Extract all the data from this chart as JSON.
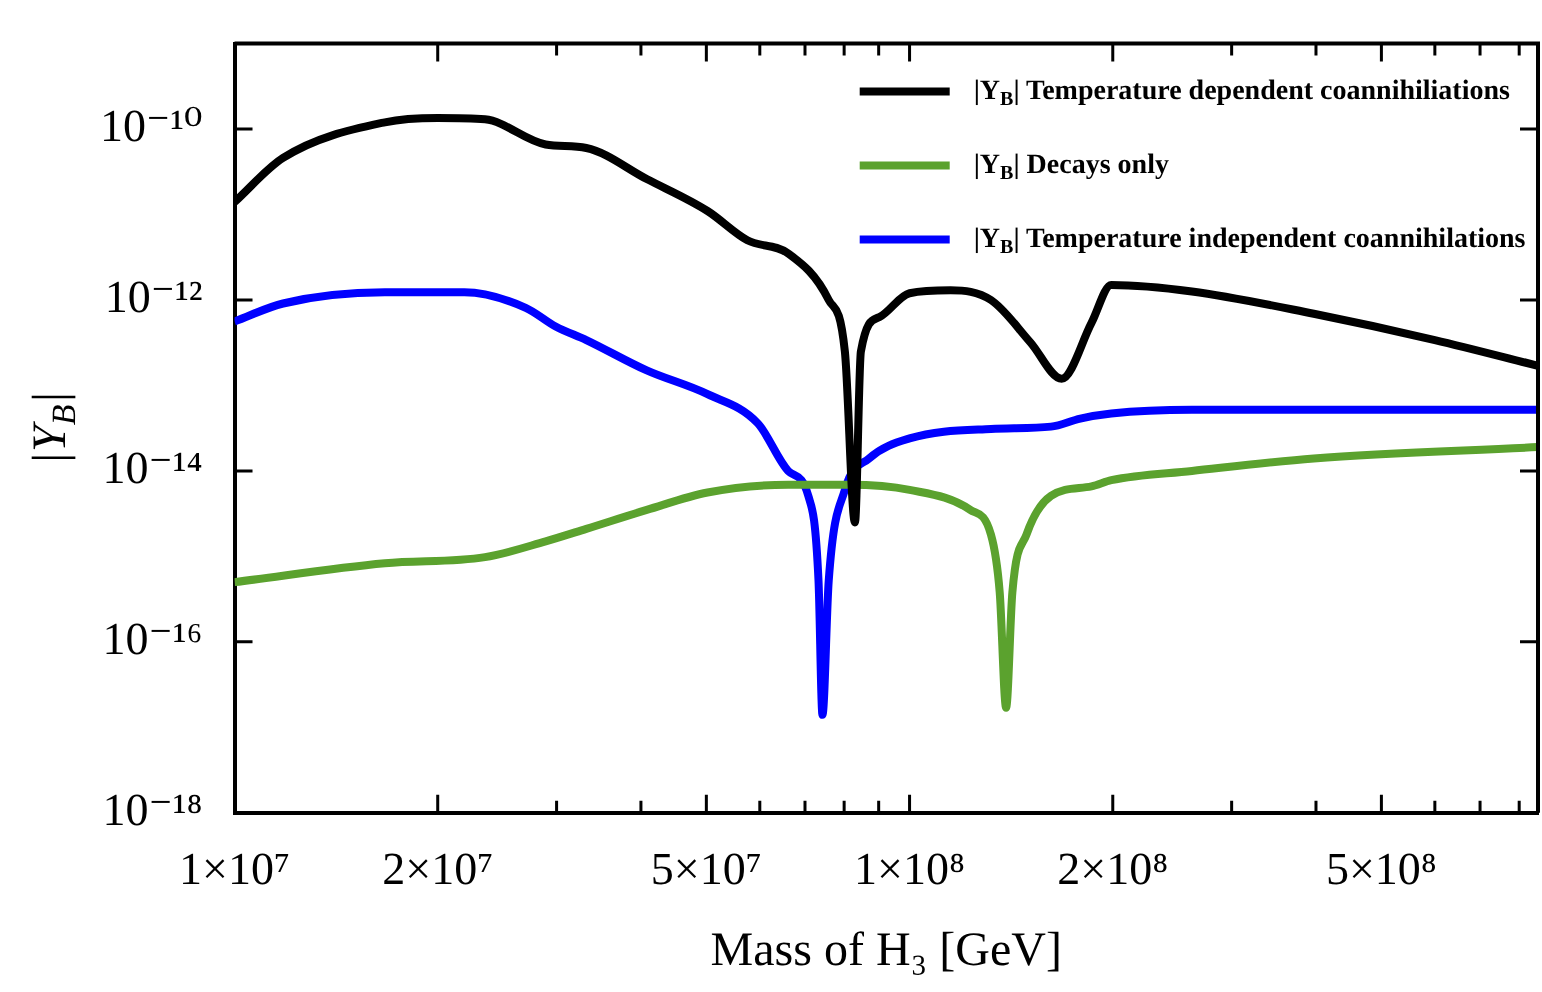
{
  "chart_data": {
    "type": "line",
    "xlabel": "Mass of H₃ [GeV]",
    "ylabel": "|Y$_{B}$|",
    "log": "xy",
    "legend": "top right",
    "marker": "none",
    "line_style": "solid",
    "xlim": [
      10000000.0,
      853000000.0
    ],
    "ylim": [
      1e-18,
      1e-09
    ],
    "xticks": [
      {
        "value": 10000000.0,
        "label": "1×10⁷"
      },
      {
        "value": 20000000.0,
        "label": "2×10⁷"
      },
      {
        "value": 30000000.0,
        "label": null
      },
      {
        "value": 40000000.0,
        "label": null
      },
      {
        "value": 50000000.0,
        "label": "5×10⁷"
      },
      {
        "value": 60000000.0,
        "label": null
      },
      {
        "value": 70000000.0,
        "label": null
      },
      {
        "value": 80000000.0,
        "label": null
      },
      {
        "value": 90000000.0,
        "label": null
      },
      {
        "value": 100000000.0,
        "label": "1×10⁸"
      },
      {
        "value": 200000000.0,
        "label": "2×10⁸"
      },
      {
        "value": 300000000.0,
        "label": null
      },
      {
        "value": 400000000.0,
        "label": null
      },
      {
        "value": 500000000.0,
        "label": "5×10⁸"
      },
      {
        "value": 600000000.0,
        "label": null
      },
      {
        "value": 700000000.0,
        "label": null
      },
      {
        "value": 800000000.0,
        "label": null
      }
    ],
    "yticks": [
      {
        "value": 1e-18,
        "label": "10⁻¹⁸"
      },
      {
        "value": 1e-16,
        "label": "10⁻¹⁶"
      },
      {
        "value": 1e-14,
        "label": "10⁻¹⁴"
      },
      {
        "value": 1e-12,
        "label": "10⁻¹²"
      },
      {
        "value": 1e-10,
        "label": "10⁻¹⁰"
      }
    ],
    "series": [
      {
        "name": "|Y$_{B}$| Temperature dependent coannihiliations",
        "color": "#000000",
        "x": [
          10000000.0,
          11800000.0,
          16700000.0,
          20000000.0,
          23500000.0,
          28900000.0,
          33200000.0,
          40800000.0,
          50200000.0,
          57500000.0,
          66100000.0,
          75900000.0,
          80200000.0,
          83000000.0,
          84700000.0,
          90200000.0,
          100000000.0,
          115000000.0,
          132000000.0,
          151000000.0,
          168000000.0,
          186000000.0,
          199000000.0,
          262000000.0,
          397000000.0,
          600000000.0,
          853000000.0
        ],
        "values": [
          1.4e-11,
          4.6e-11,
          1.2e-10,
          1.35e-10,
          1.3e-10,
          6.6e-11,
          6e-11,
          2.6e-11,
          1.1e-11,
          5e-12,
          3.5e-12,
          1e-12,
          2.5e-13,
          2.5e-15,
          2.5e-13,
          6.3e-13,
          1.2e-12,
          1.3e-12,
          1e-12,
          3.2e-13,
          1.2e-13,
          5.4e-13,
          1.5e-12,
          1.26e-12,
          6.9e-13,
          3.4e-13,
          1.7e-13
        ]
      },
      {
        "name": "|Y$_{B}$| Decays only",
        "color": "#5ba22e",
        "x": [
          10000000.0,
          16700000.0,
          23500000.0,
          28900000.0,
          33200000.0,
          40800000.0,
          50200000.0,
          66100000.0,
          81300000.0,
          100000000.0,
          123000000.0,
          132000000.0,
          136000000.0,
          139000000.0,
          142000000.0,
          149000000.0,
          162000000.0,
          186000000.0,
          199000000.0,
          262000000.0,
          397000000.0,
          853000000.0
        ],
        "values": [
          5e-16,
          8.3e-16,
          9.8e-16,
          1.5e-15,
          2.1e-15,
          3.5e-15,
          5.6e-15,
          6.9e-15,
          6.9e-15,
          6e-15,
          3.5e-15,
          1.8e-15,
          3.8e-16,
          1.7e-17,
          3.8e-16,
          1.8e-15,
          5.1e-15,
          6.6e-15,
          7.8e-15,
          1e-14,
          1.4e-14,
          1.9e-14
        ]
      },
      {
        "name": "|Y$_{B}$| Temperature independent coannihilations",
        "color": "#0000ff",
        "x": [
          10000000.0,
          11800000.0,
          16700000.0,
          21900000.0,
          27000000.0,
          29900000.0,
          33200000.0,
          40800000.0,
          50200000.0,
          59600000.0,
          66100000.0,
          70800000.0,
          73300000.0,
          74300000.0,
          75900000.0,
          80200000.0,
          87100000.0,
          100000000.0,
          132000000.0,
          162000000.0,
          179000000.0,
          199000000.0,
          262000000.0,
          853000000.0
        ],
        "values": [
          5.6e-13,
          9.1e-13,
          1.23e-12,
          1.23e-12,
          8.1e-13,
          4.9e-13,
          3.4e-13,
          1.5e-13,
          7.9e-14,
          3.6e-14,
          1e-14,
          5.1e-15,
          5.2e-16,
          1.4e-17,
          5.2e-16,
          6e-15,
          1.4e-14,
          2.4e-14,
          3.1e-14,
          3.3e-14,
          4.1e-14,
          4.7e-14,
          5.2e-14,
          5.2e-14
        ]
      }
    ]
  }
}
